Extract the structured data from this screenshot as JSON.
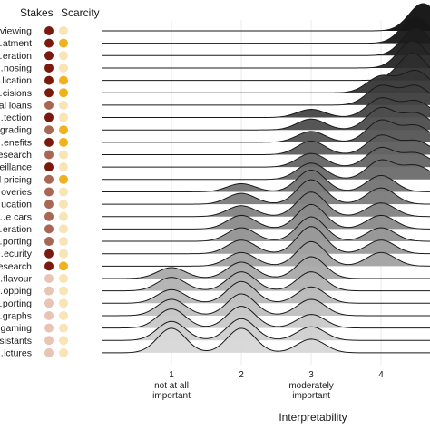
{
  "chart_data": {
    "type": "ridgeline",
    "xlabel": "Interpretability",
    "x_ticks": [
      {
        "value": 1,
        "label": "1",
        "sublabel": [
          "not at all",
          "important"
        ]
      },
      {
        "value": 2,
        "label": "2",
        "sublabel": []
      },
      {
        "value": 3,
        "label": "3",
        "sublabel": [
          "moderately",
          "important"
        ]
      },
      {
        "value": 4,
        "label": "4",
        "sublabel": []
      }
    ],
    "xlim": [
      0.0,
      4.7
    ],
    "grid": "vertical",
    "column_headers": {
      "stakes": "Stakes",
      "scarcity": "Scarcity"
    },
    "stakes_colors": {
      "high": "#7a1a0e",
      "medium": "#a86655",
      "low": "#e8c4b4"
    },
    "scarcity_colors": {
      "high": "#f0b21c",
      "low": "#f8e4b4"
    },
    "rows": [
      {
        "label": "…viewing",
        "stakes": "high",
        "scarcity": "low",
        "peaks": [
          [
            4.6,
            1.0
          ]
        ]
      },
      {
        "label": "…atment",
        "stakes": "high",
        "scarcity": "high",
        "peaks": [
          [
            4.5,
            1.0
          ]
        ]
      },
      {
        "label": "…eration",
        "stakes": "high",
        "scarcity": "low",
        "peaks": [
          [
            4.5,
            1.0
          ]
        ]
      },
      {
        "label": "…nosing",
        "stakes": "high",
        "scarcity": "low",
        "peaks": [
          [
            4.45,
            1.0
          ]
        ]
      },
      {
        "label": "…lication",
        "stakes": "high",
        "scarcity": "high",
        "peaks": [
          [
            4.45,
            1.0
          ]
        ]
      },
      {
        "label": "…cisions",
        "stakes": "high",
        "scarcity": "high",
        "peaks": [
          [
            4.0,
            0.6
          ],
          [
            4.5,
            0.8
          ]
        ]
      },
      {
        "label": "…al loans",
        "stakes": "medium",
        "scarcity": "low",
        "peaks": [
          [
            4.0,
            0.7
          ],
          [
            4.5,
            0.7
          ]
        ]
      },
      {
        "label": "…tection",
        "stakes": "high",
        "scarcity": "low",
        "peaks": [
          [
            3.0,
            0.3
          ],
          [
            4.0,
            0.7
          ],
          [
            4.5,
            0.6
          ]
        ]
      },
      {
        "label": "…grading",
        "stakes": "medium",
        "scarcity": "high",
        "peaks": [
          [
            3.0,
            0.4
          ],
          [
            4.0,
            0.8
          ],
          [
            4.5,
            0.6
          ]
        ]
      },
      {
        "label": "…enefits",
        "stakes": "high",
        "scarcity": "high",
        "peaks": [
          [
            3.0,
            0.4
          ],
          [
            4.0,
            0.8
          ],
          [
            4.5,
            0.6
          ]
        ]
      },
      {
        "label": "…esearch",
        "stakes": "medium",
        "scarcity": "low",
        "peaks": [
          [
            3.0,
            0.5
          ],
          [
            4.0,
            0.7
          ],
          [
            4.5,
            0.5
          ]
        ]
      },
      {
        "label": "…eillance",
        "stakes": "high",
        "scarcity": "low",
        "peaks": [
          [
            3.0,
            0.5
          ],
          [
            4.0,
            0.7
          ],
          [
            4.5,
            0.5
          ]
        ]
      },
      {
        "label": "…l pricing",
        "stakes": "medium",
        "scarcity": "high",
        "peaks": [
          [
            3.0,
            0.6
          ],
          [
            4.0,
            0.7
          ],
          [
            4.5,
            0.5
          ]
        ]
      },
      {
        "label": "…overies",
        "stakes": "medium",
        "scarcity": "low",
        "peaks": [
          [
            2.0,
            0.3
          ],
          [
            3.0,
            0.8
          ],
          [
            4.0,
            0.6
          ]
        ]
      },
      {
        "label": "…ucation",
        "stakes": "medium",
        "scarcity": "low",
        "peaks": [
          [
            2.0,
            0.4
          ],
          [
            3.0,
            0.9
          ],
          [
            4.0,
            0.6
          ]
        ]
      },
      {
        "label": "…e cars",
        "stakes": "medium",
        "scarcity": "low",
        "peaks": [
          [
            2.0,
            0.4
          ],
          [
            3.0,
            0.9
          ],
          [
            4.0,
            0.5
          ]
        ]
      },
      {
        "label": "…eration",
        "stakes": "medium",
        "scarcity": "low",
        "peaks": [
          [
            2.0,
            0.5
          ],
          [
            3.0,
            0.9
          ],
          [
            4.0,
            0.5
          ]
        ]
      },
      {
        "label": "…porting",
        "stakes": "medium",
        "scarcity": "low",
        "peaks": [
          [
            2.0,
            0.5
          ],
          [
            3.0,
            0.9
          ],
          [
            4.0,
            0.5
          ]
        ]
      },
      {
        "label": "…ecurity",
        "stakes": "high",
        "scarcity": "low",
        "peaks": [
          [
            2.0,
            0.5
          ],
          [
            3.0,
            1.0
          ],
          [
            4.0,
            0.5
          ]
        ]
      },
      {
        "label": "…esearch",
        "stakes": "high",
        "scarcity": "high",
        "peaks": [
          [
            2.0,
            0.5
          ],
          [
            3.0,
            0.9
          ],
          [
            4.0,
            0.5
          ]
        ]
      },
      {
        "label": "…flavour",
        "stakes": "low",
        "scarcity": "low",
        "peaks": [
          [
            1.0,
            0.4
          ],
          [
            2.0,
            0.6
          ],
          [
            3.0,
            0.8
          ]
        ]
      },
      {
        "label": "…opping",
        "stakes": "low",
        "scarcity": "low",
        "peaks": [
          [
            1.0,
            0.5
          ],
          [
            2.0,
            0.7
          ],
          [
            3.0,
            0.7
          ]
        ]
      },
      {
        "label": "…porting",
        "stakes": "low",
        "scarcity": "low",
        "peaks": [
          [
            1.0,
            0.5
          ],
          [
            2.0,
            0.8
          ],
          [
            3.0,
            0.6
          ]
        ]
      },
      {
        "label": "…graphs",
        "stakes": "low",
        "scarcity": "low",
        "peaks": [
          [
            1.0,
            0.6
          ],
          [
            2.0,
            0.8
          ],
          [
            3.0,
            0.6
          ]
        ]
      },
      {
        "label": "…gaming",
        "stakes": "low",
        "scarcity": "low",
        "peaks": [
          [
            1.0,
            0.7
          ],
          [
            2.0,
            0.8
          ],
          [
            3.0,
            0.5
          ]
        ]
      },
      {
        "label": "…sistants",
        "stakes": "low",
        "scarcity": "low",
        "peaks": [
          [
            1.0,
            0.7
          ],
          [
            2.0,
            0.8
          ],
          [
            3.0,
            0.5
          ]
        ]
      },
      {
        "label": "…ictures",
        "stakes": "low",
        "scarcity": "low",
        "peaks": [
          [
            1.0,
            0.9
          ],
          [
            2.0,
            0.9
          ],
          [
            3.0,
            0.5
          ]
        ]
      }
    ]
  }
}
